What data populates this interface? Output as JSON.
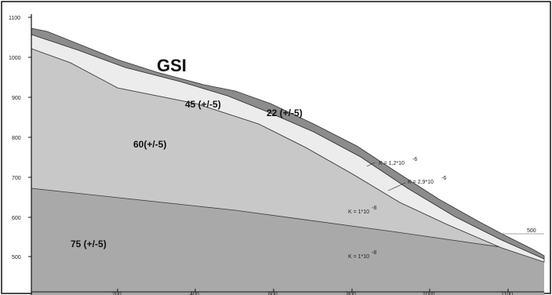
{
  "title": "GSI",
  "y_ticks": [
    {
      "label": "1100",
      "value": 1100
    },
    {
      "label": "1000",
      "value": 1000
    },
    {
      "label": "900",
      "value": 900
    },
    {
      "label": "800",
      "value": 800
    },
    {
      "label": "700",
      "value": 700
    },
    {
      "label": "600",
      "value": 600
    },
    {
      "label": "500",
      "value": 500
    }
  ],
  "x_ticks": [
    {
      "label": "200"
    },
    {
      "label": "400"
    },
    {
      "label": "600"
    },
    {
      "label": "800"
    },
    {
      "label": "1000"
    },
    {
      "label": "1100"
    }
  ],
  "layers": {
    "top_thin": "22 (+/-5)",
    "upper": "45 (+/-5)",
    "middle": "60(+/-5)",
    "bedrock": "75 (+/-5)"
  },
  "permeability": {
    "k1": "K = 1,2*10",
    "k1_exp": "-6",
    "k2": "K = 2,9*10",
    "k2_exp": "-6",
    "k3": "K = 1*10",
    "k3_exp": "-8",
    "k4": "K = 1*10",
    "k4_exp": "-8"
  },
  "level_marker": "500",
  "colors": {
    "frame": "#111111",
    "top_layer": "#8c8c8c",
    "upper_layer": "#ececec",
    "middle_layer": "#c8c8c8",
    "bedrock": "#a9a9a9"
  }
}
